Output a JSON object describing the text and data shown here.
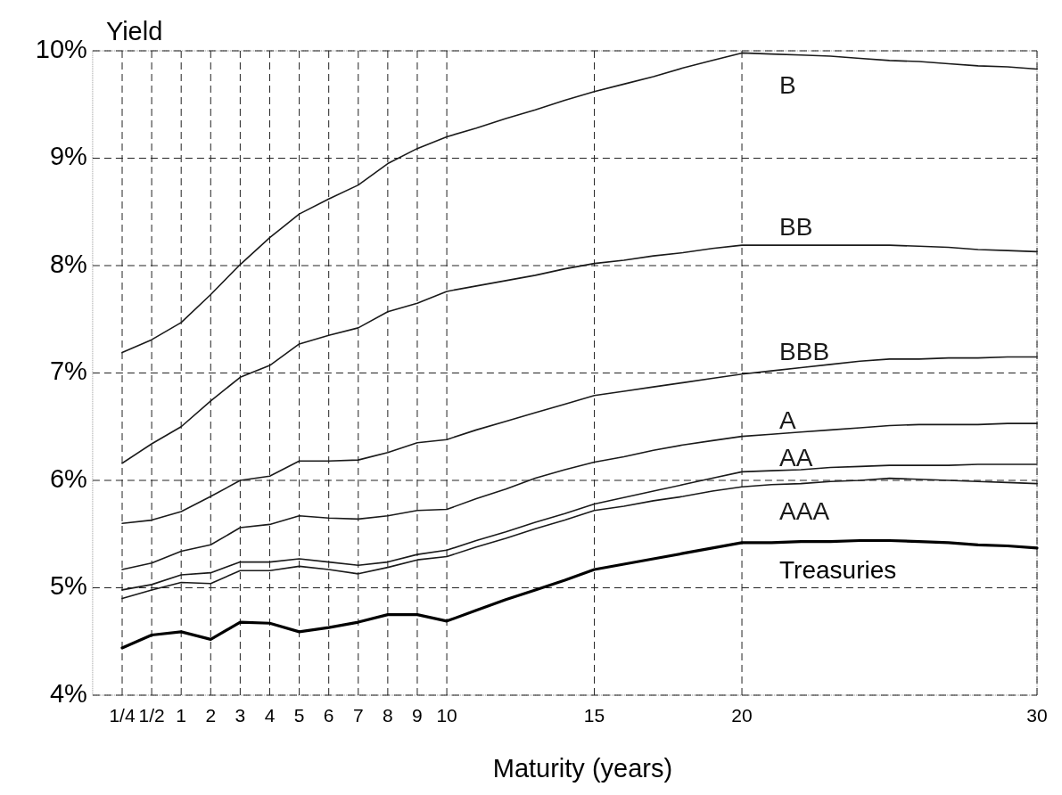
{
  "chart_data": {
    "type": "line",
    "ylabel": "Yield",
    "xlabel": "Maturity (years)",
    "categories": [
      "1/4",
      "1/2",
      "1",
      "2",
      "3",
      "4",
      "5",
      "6",
      "7",
      "8",
      "9",
      "10",
      null,
      null,
      null,
      null,
      "15",
      null,
      null,
      null,
      null,
      "20",
      null,
      null,
      null,
      null,
      null,
      null,
      null,
      null,
      null,
      "30"
    ],
    "ylim": [
      4,
      10
    ],
    "yticks": [
      {
        "value": 4,
        "label": "4%"
      },
      {
        "value": 5,
        "label": "5%"
      },
      {
        "value": 6,
        "label": "6%"
      },
      {
        "value": 7,
        "label": "7%"
      },
      {
        "value": 8,
        "label": "8%"
      },
      {
        "value": 9,
        "label": "9%"
      },
      {
        "value": 10,
        "label": "10%"
      }
    ],
    "grid": true,
    "line_style": "solid",
    "marker": "none",
    "series": [
      {
        "name": "B",
        "color": "#1a1a1a",
        "values": [
          7.19,
          7.31,
          7.47,
          7.73,
          8.01,
          8.26,
          8.48,
          8.62,
          8.75,
          8.95,
          9.09,
          9.2,
          9.28,
          9.37,
          9.45,
          9.54,
          9.62,
          9.69,
          9.76,
          9.84,
          9.91,
          9.98,
          9.97,
          9.96,
          9.95,
          9.93,
          9.91,
          9.9,
          9.88,
          9.86,
          9.85,
          9.83
        ]
      },
      {
        "name": "BB",
        "color": "#1a1a1a",
        "values": [
          6.16,
          6.34,
          6.5,
          6.74,
          6.96,
          7.07,
          7.27,
          7.35,
          7.42,
          7.57,
          7.65,
          7.76,
          7.81,
          7.86,
          7.91,
          7.97,
          8.02,
          8.05,
          8.09,
          8.12,
          8.16,
          8.19,
          8.19,
          8.19,
          8.19,
          8.19,
          8.19,
          8.18,
          8.17,
          8.15,
          8.14,
          8.13
        ]
      },
      {
        "name": "BBB",
        "color": "#1a1a1a",
        "values": [
          5.6,
          5.63,
          5.71,
          5.85,
          6,
          6.04,
          6.18,
          6.18,
          6.19,
          6.26,
          6.35,
          6.38,
          6.47,
          6.55,
          6.63,
          6.71,
          6.79,
          6.83,
          6.87,
          6.91,
          6.95,
          6.99,
          7.02,
          7.05,
          7.08,
          7.11,
          7.13,
          7.13,
          7.14,
          7.14,
          7.15,
          7.15
        ]
      },
      {
        "name": "A",
        "color": "#1a1a1a",
        "values": [
          5.17,
          5.23,
          5.34,
          5.4,
          5.56,
          5.59,
          5.67,
          5.65,
          5.64,
          5.67,
          5.72,
          5.73,
          5.83,
          5.92,
          6.02,
          6.1,
          6.17,
          6.22,
          6.28,
          6.33,
          6.37,
          6.41,
          6.43,
          6.45,
          6.47,
          6.49,
          6.51,
          6.52,
          6.52,
          6.52,
          6.53,
          6.53
        ]
      },
      {
        "name": "AA",
        "color": "#1a1a1a",
        "values": [
          4.98,
          5.03,
          5.12,
          5.14,
          5.24,
          5.24,
          5.27,
          5.24,
          5.21,
          5.24,
          5.31,
          5.35,
          5.44,
          5.52,
          5.61,
          5.69,
          5.78,
          5.84,
          5.9,
          5.96,
          6.02,
          6.08,
          6.09,
          6.1,
          6.12,
          6.13,
          6.14,
          6.14,
          6.14,
          6.15,
          6.15,
          6.15
        ]
      },
      {
        "name": "AAA",
        "color": "#1a1a1a",
        "values": [
          4.9,
          4.98,
          5.05,
          5.04,
          5.16,
          5.16,
          5.2,
          5.17,
          5.13,
          5.19,
          5.26,
          5.29,
          5.38,
          5.46,
          5.55,
          5.63,
          5.72,
          5.76,
          5.81,
          5.85,
          5.9,
          5.94,
          5.96,
          5.97,
          5.99,
          6,
          6.02,
          6.01,
          6,
          5.99,
          5.98,
          5.97
        ]
      },
      {
        "name": "Treasuries",
        "color": "#000000",
        "values": [
          4.44,
          4.56,
          4.59,
          4.52,
          4.68,
          4.67,
          4.59,
          4.63,
          4.68,
          4.75,
          4.75,
          4.69,
          4.79,
          4.89,
          4.98,
          5.07,
          5.17,
          5.22,
          5.27,
          5.32,
          5.37,
          5.42,
          5.42,
          5.43,
          5.43,
          5.44,
          5.44,
          5.43,
          5.42,
          5.4,
          5.39,
          5.37
        ]
      }
    ]
  }
}
